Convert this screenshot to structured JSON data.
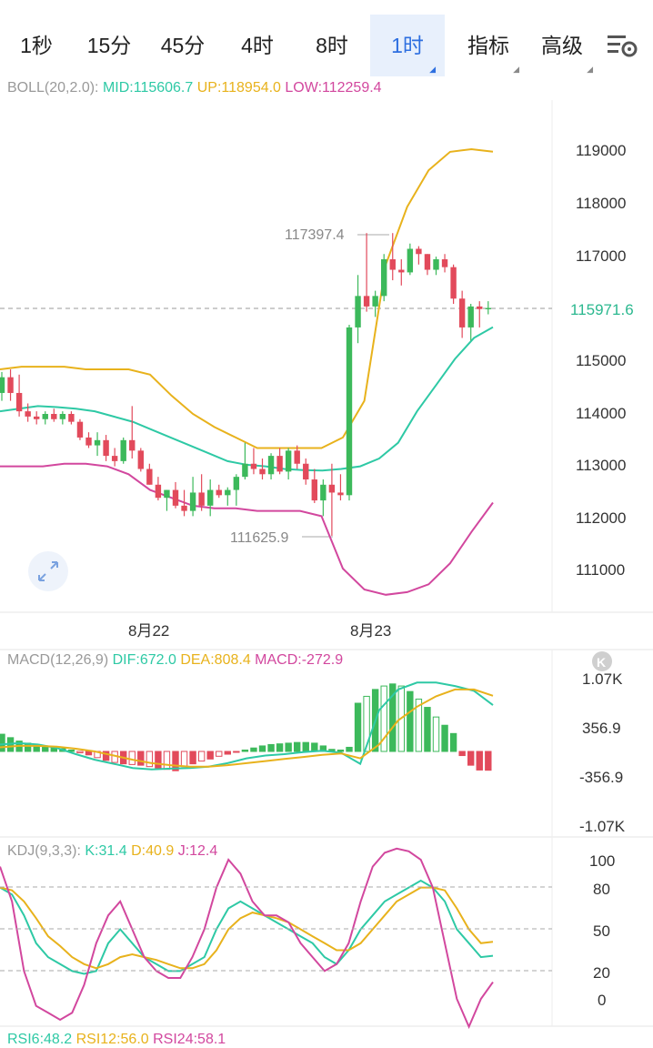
{
  "tabs": [
    {
      "label": "1秒"
    },
    {
      "label": "15分"
    },
    {
      "label": "45分"
    },
    {
      "label": "4时"
    },
    {
      "label": "8时"
    },
    {
      "label": "1时",
      "active": true,
      "dropdown": true
    },
    {
      "label": "指标",
      "dropdown": true
    },
    {
      "label": "高级",
      "dropdown": true
    }
  ],
  "settings_icon": "chart-settings-icon",
  "boll": {
    "name": "BOLL(20,2.0):",
    "mid": "MID:115606.7",
    "up": "UP:118954.0",
    "low": "LOW:112259.4"
  },
  "price_axis": [
    "119000",
    "118000",
    "117000",
    "115000",
    "114000",
    "113000",
    "112000",
    "111000"
  ],
  "current_price": "115971.6",
  "annotations": {
    "high": "117397.4",
    "low": "111625.9"
  },
  "date_labels": [
    "8月22",
    "8月23"
  ],
  "macd": {
    "name": "MACD(12,26,9)",
    "dif": "DIF:672.0",
    "dea": "DEA:808.4",
    "macd": "MACD:-272.9",
    "axis": [
      "1.07K",
      "356.9",
      "-356.9",
      "-1.07K"
    ]
  },
  "kdj": {
    "name": "KDJ(9,3,3):",
    "k": "K:31.4",
    "d": "D:40.9",
    "j": "J:12.4",
    "axis": [
      "100",
      "80",
      "50",
      "20",
      "0"
    ]
  },
  "rsi": {
    "r6": "RSI6:48.2",
    "r12": "RSI12:56.0",
    "r24": "RSI24:58.1"
  },
  "colors": {
    "up": "#3cb95b",
    "down": "#e24a5b",
    "mid": "#2ec9a5",
    "upper": "#e8b21c",
    "lower": "#d2479e",
    "active": "#2e6fe0"
  },
  "chart_data": [
    {
      "type": "candlestick",
      "title": "BOLL(20,2.0)",
      "ylim": [
        110300,
        119900
      ],
      "x_labels": [
        "8月22",
        "8月23"
      ],
      "candles": [
        [
          114350,
          114750,
          114200,
          114650
        ],
        [
          114650,
          114800,
          114200,
          114350
        ],
        [
          114350,
          114700,
          113900,
          114000
        ],
        [
          114000,
          114150,
          113800,
          113900
        ],
        [
          113900,
          114000,
          113750,
          113850
        ],
        [
          113850,
          114000,
          113750,
          113950
        ],
        [
          113950,
          114050,
          113800,
          113850
        ],
        [
          113850,
          114000,
          113750,
          113950
        ],
        [
          113950,
          114000,
          113750,
          113800
        ],
        [
          113800,
          113850,
          113450,
          113500
        ],
        [
          113500,
          113600,
          113300,
          113350
        ],
        [
          113350,
          113600,
          113150,
          113450
        ],
        [
          113450,
          113550,
          113050,
          113150
        ],
        [
          113150,
          113300,
          112950,
          113050
        ],
        [
          113050,
          113500,
          113000,
          113450
        ],
        [
          113450,
          114100,
          113100,
          113250
        ],
        [
          113250,
          113300,
          112850,
          112900
        ],
        [
          112900,
          113000,
          112600,
          112600
        ],
        [
          112600,
          112750,
          112300,
          112350
        ],
        [
          112350,
          112500,
          112100,
          112500
        ],
        [
          112500,
          112650,
          112150,
          112200
        ],
        [
          112200,
          112500,
          112000,
          112100
        ],
        [
          112100,
          112750,
          112000,
          112450
        ],
        [
          112450,
          112800,
          112100,
          112200
        ],
        [
          112200,
          112700,
          112000,
          112500
        ],
        [
          112500,
          112600,
          112350,
          112400
        ],
        [
          112400,
          112550,
          112200,
          112500
        ],
        [
          112500,
          112800,
          112200,
          112750
        ],
        [
          112750,
          113400,
          112700,
          113000
        ],
        [
          113000,
          113300,
          112800,
          112900
        ],
        [
          112900,
          113100,
          112700,
          112800
        ],
        [
          112800,
          113200,
          112700,
          113150
        ],
        [
          113150,
          113300,
          112800,
          112850
        ],
        [
          112850,
          113300,
          112700,
          113250
        ],
        [
          113250,
          113350,
          112900,
          113000
        ],
        [
          113000,
          113100,
          112600,
          112700
        ],
        [
          112700,
          112900,
          112250,
          112300
        ],
        [
          112300,
          112700,
          112000,
          112600
        ],
        [
          112600,
          113000,
          111625,
          112450
        ],
        [
          112450,
          112800,
          112300,
          112400
        ],
        [
          112400,
          115650,
          112300,
          115600
        ],
        [
          115600,
          116600,
          115300,
          116200
        ],
        [
          116200,
          117400,
          115900,
          116000
        ],
        [
          116000,
          116300,
          115800,
          116200
        ],
        [
          116200,
          117000,
          116100,
          116900
        ],
        [
          116900,
          117400,
          116500,
          116700
        ],
        [
          116700,
          116900,
          116400,
          116650
        ],
        [
          116650,
          117200,
          116600,
          117100
        ],
        [
          117100,
          117150,
          116800,
          117000
        ],
        [
          117000,
          117000,
          116600,
          116700
        ],
        [
          116700,
          116950,
          116600,
          116900
        ],
        [
          116900,
          117000,
          116650,
          116750
        ],
        [
          116750,
          116800,
          116050,
          116150
        ],
        [
          116150,
          116300,
          115400,
          115600
        ],
        [
          115600,
          116050,
          115350,
          116000
        ],
        [
          116000,
          116100,
          115600,
          115950
        ],
        [
          115950,
          116100,
          115850,
          115972
        ]
      ],
      "series": [
        {
          "name": "MID",
          "values": [
            114000,
            114050,
            114100,
            114080,
            114050,
            114000,
            113900,
            113800,
            113650,
            113500,
            113350,
            113200,
            113050,
            112980,
            112950,
            112900,
            112880,
            112870,
            112900,
            112950,
            113100,
            113400,
            114000,
            114500,
            115000,
            115400,
            115606
          ]
        },
        {
          "name": "UP",
          "values": [
            114800,
            114850,
            114850,
            114850,
            114800,
            114800,
            114800,
            114700,
            114300,
            113950,
            113700,
            113500,
            113300,
            113300,
            113300,
            113300,
            113500,
            114200,
            116800,
            117900,
            118600,
            118950,
            119000,
            118954
          ]
        },
        {
          "name": "LOW",
          "values": [
            112950,
            112950,
            112950,
            113000,
            113000,
            112950,
            112800,
            112500,
            112350,
            112200,
            112150,
            112150,
            112100,
            112100,
            112100,
            112000,
            111000,
            110600,
            110500,
            110550,
            110700,
            111100,
            111700,
            112259
          ]
        }
      ],
      "current_price": 115971.6,
      "max_label": 117397.4,
      "min_label": 111625.9
    },
    {
      "type": "bar",
      "title": "MACD(12,26,9)",
      "ylim": [
        -1070,
        1070
      ],
      "histogram": [
        250,
        200,
        150,
        120,
        100,
        80,
        60,
        40,
        20,
        -20,
        -50,
        -90,
        -130,
        -160,
        -180,
        -190,
        -200,
        -220,
        -240,
        -260,
        -280,
        -220,
        -180,
        -140,
        -110,
        -70,
        -40,
        -10,
        20,
        50,
        80,
        100,
        110,
        120,
        130,
        130,
        120,
        80,
        30,
        20,
        60,
        700,
        800,
        900,
        950,
        980,
        950,
        870,
        760,
        640,
        500,
        380,
        260,
        -60,
        -200,
        -270,
        -273
      ],
      "series": [
        {
          "name": "DIF",
          "values": [
            100,
            120,
            100,
            50,
            -40,
            -120,
            -180,
            -240,
            -260,
            -250,
            -240,
            -220,
            -170,
            -100,
            -60,
            -40,
            -10,
            10,
            -20,
            -180,
            600,
            900,
            1000,
            1000,
            950,
            880,
            672
          ]
        },
        {
          "name": "DEA",
          "values": [
            60,
            80,
            80,
            70,
            40,
            0,
            -60,
            -120,
            -170,
            -200,
            -220,
            -220,
            -200,
            -170,
            -140,
            -110,
            -80,
            -50,
            -30,
            -100,
            100,
            450,
            650,
            800,
            900,
            900,
            808
          ]
        }
      ]
    },
    {
      "type": "line",
      "title": "KDJ(9,3,3)",
      "ylim": [
        -20,
        110
      ],
      "y_ticks": [
        100,
        80,
        50,
        20,
        0
      ],
      "series": [
        {
          "name": "K",
          "values": [
            80,
            75,
            60,
            40,
            30,
            25,
            20,
            18,
            20,
            40,
            50,
            40,
            30,
            25,
            20,
            20,
            25,
            30,
            50,
            65,
            70,
            65,
            60,
            55,
            50,
            45,
            40,
            30,
            25,
            35,
            50,
            60,
            70,
            75,
            80,
            85,
            80,
            70,
            50,
            40,
            30,
            31
          ]
        },
        {
          "name": "D",
          "values": [
            80,
            78,
            70,
            58,
            45,
            38,
            30,
            25,
            22,
            25,
            30,
            32,
            30,
            28,
            25,
            22,
            22,
            25,
            35,
            50,
            58,
            62,
            60,
            58,
            55,
            50,
            45,
            40,
            35,
            35,
            40,
            50,
            60,
            70,
            75,
            80,
            80,
            78,
            65,
            50,
            40,
            41
          ]
        },
        {
          "name": "J",
          "values": [
            95,
            70,
            20,
            -5,
            -10,
            -15,
            -10,
            10,
            40,
            60,
            70,
            50,
            30,
            20,
            15,
            15,
            30,
            50,
            80,
            100,
            90,
            70,
            60,
            60,
            55,
            40,
            30,
            20,
            25,
            40,
            70,
            95,
            105,
            108,
            106,
            100,
            80,
            40,
            0,
            -20,
            0,
            12
          ]
        }
      ]
    }
  ]
}
